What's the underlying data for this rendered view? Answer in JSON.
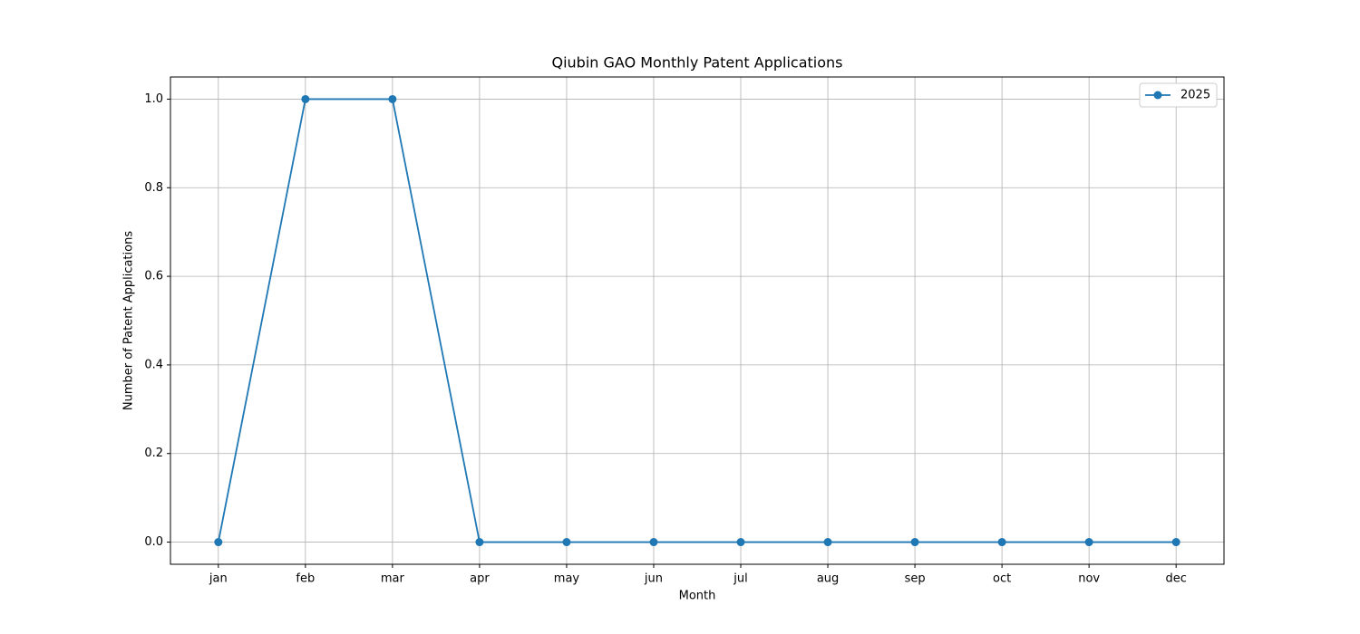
{
  "chart_data": {
    "type": "line",
    "title": "Qiubin GAO Monthly Patent Applications",
    "x_label": "Month",
    "y_label": "Number of Patent Applications",
    "categories": [
      "jan",
      "feb",
      "mar",
      "apr",
      "may",
      "jun",
      "jul",
      "aug",
      "sep",
      "oct",
      "nov",
      "dec"
    ],
    "series": [
      {
        "name": "2025",
        "color": "#1f77b4",
        "values": [
          0,
          1,
          1,
          0,
          0,
          0,
          0,
          0,
          0,
          0,
          0,
          0
        ]
      }
    ],
    "ylim": [
      -0.05,
      1.05
    ],
    "yticks": [
      {
        "value": 0,
        "label": "0.0"
      },
      {
        "value": 0.2,
        "label": "0.2"
      },
      {
        "value": 0.4,
        "label": "0.4"
      },
      {
        "value": 0.6,
        "label": "0.6"
      },
      {
        "value": 0.8,
        "label": "0.8"
      },
      {
        "value": 1,
        "label": "1.0"
      }
    ],
    "grid": true,
    "legend": "upper right"
  }
}
